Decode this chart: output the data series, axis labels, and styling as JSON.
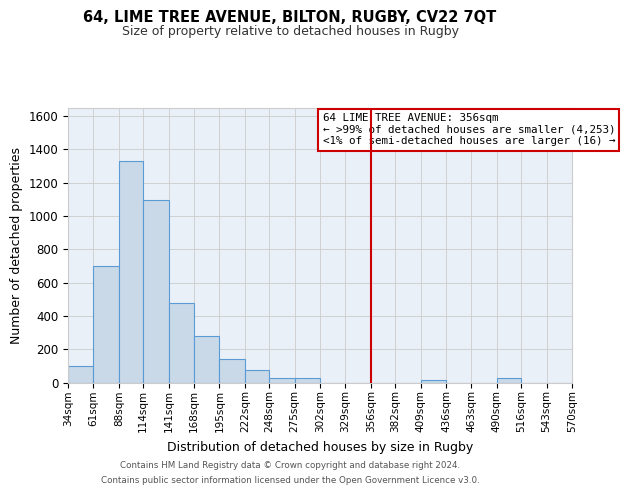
{
  "title": "64, LIME TREE AVENUE, BILTON, RUGBY, CV22 7QT",
  "subtitle": "Size of property relative to detached houses in Rugby",
  "xlabel": "Distribution of detached houses by size in Rugby",
  "ylabel": "Number of detached properties",
  "bar_color": "#c9d9e8",
  "bar_edge_color": "#5b9bd5",
  "background_color": "#eaf0f8",
  "bin_edges": [
    34,
    61,
    88,
    114,
    141,
    168,
    195,
    222,
    248,
    275,
    302,
    329,
    356,
    382,
    409,
    436,
    463,
    490,
    516,
    543,
    570
  ],
  "bar_heights": [
    100,
    700,
    1330,
    1095,
    480,
    280,
    140,
    75,
    30,
    30,
    0,
    0,
    0,
    0,
    15,
    0,
    0,
    30,
    0,
    0
  ],
  "vline_x": 356,
  "vline_color": "#cc0000",
  "ylim": [
    0,
    1650
  ],
  "yticks": [
    0,
    200,
    400,
    600,
    800,
    1000,
    1200,
    1400,
    1600
  ],
  "annotation_title": "64 LIME TREE AVENUE: 356sqm",
  "annotation_line1": "← >99% of detached houses are smaller (4,253)",
  "annotation_line2": "<1% of semi-detached houses are larger (16) →",
  "annotation_box_color": "#ffffff",
  "annotation_border_color": "#cc0000",
  "grid_color": "#cccccc",
  "footer_line1": "Contains HM Land Registry data © Crown copyright and database right 2024.",
  "footer_line2": "Contains public sector information licensed under the Open Government Licence v3.0."
}
